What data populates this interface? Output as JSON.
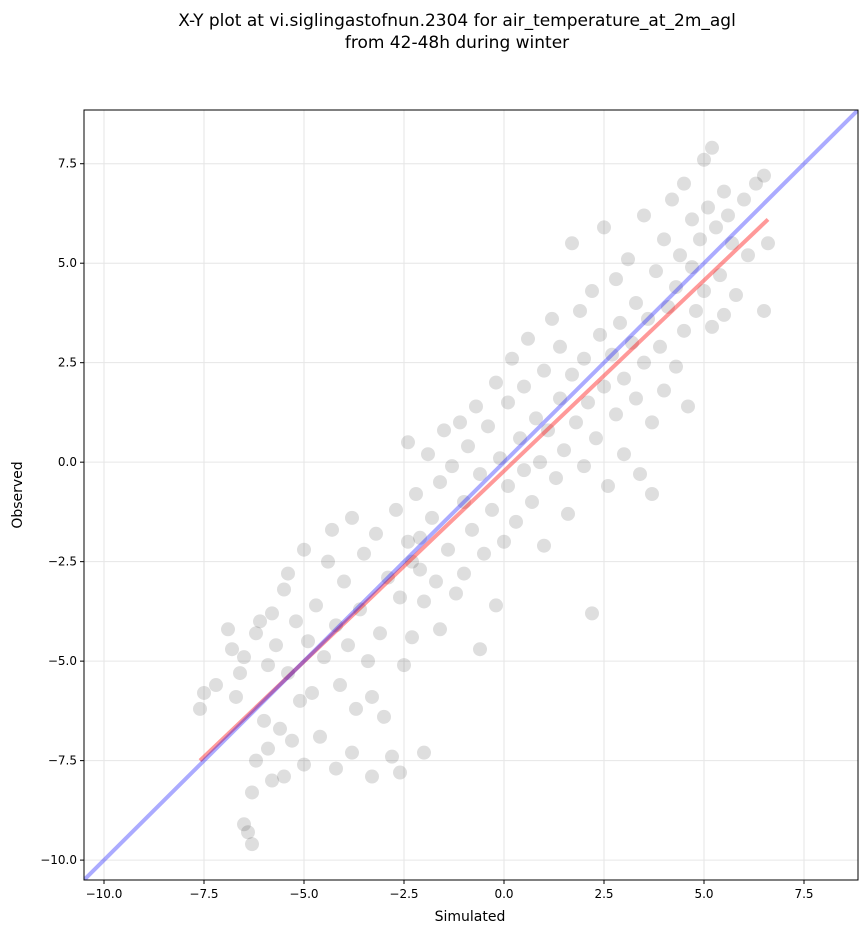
{
  "title_line1": "X-Y plot at vi.siglingastofnun.2304 for air_temperature_at_2m_agl",
  "title_line2": "from 42-48h during winter",
  "chart_data": {
    "type": "scatter",
    "title": "X-Y plot at vi.siglingastofnun.2304 for air_temperature_at_2m_agl from 42-48h during winter",
    "xlabel": "Simulated",
    "ylabel": "Observed",
    "xlim": [
      -10.5,
      8.85
    ],
    "ylim": [
      -10.5,
      8.85
    ],
    "xticks": [
      -10.0,
      -7.5,
      -5.0,
      -2.5,
      0.0,
      2.5,
      5.0,
      7.5
    ],
    "yticks": [
      -10.0,
      -7.5,
      -5.0,
      -2.5,
      0.0,
      2.5,
      5.0,
      7.5
    ],
    "xtick_labels": [
      "−10.0",
      "−7.5",
      "−5.0",
      "−2.5",
      "0.0",
      "2.5",
      "5.0",
      "7.5"
    ],
    "ytick_labels": [
      "−10.0",
      "−7.5",
      "−5.0",
      "−2.5",
      "0.0",
      "2.5",
      "5.0",
      "7.5"
    ],
    "grid": true,
    "point_color": "#000000",
    "point_alpha": 0.08,
    "series": [
      {
        "type": "scatter",
        "points": [
          [
            -7.6,
            -6.2
          ],
          [
            -7.5,
            -5.8
          ],
          [
            -7.2,
            -5.6
          ],
          [
            -6.9,
            -4.2
          ],
          [
            -6.8,
            -4.7
          ],
          [
            -6.7,
            -5.9
          ],
          [
            -6.6,
            -5.3
          ],
          [
            -6.5,
            -4.9
          ],
          [
            -6.5,
            -9.1
          ],
          [
            -6.4,
            -9.3
          ],
          [
            -6.3,
            -8.3
          ],
          [
            -6.3,
            -9.6
          ],
          [
            -6.2,
            -7.5
          ],
          [
            -6.2,
            -4.3
          ],
          [
            -6.1,
            -4.0
          ],
          [
            -6.0,
            -6.5
          ],
          [
            -5.9,
            -7.2
          ],
          [
            -5.9,
            -5.1
          ],
          [
            -5.8,
            -3.8
          ],
          [
            -5.8,
            -8.0
          ],
          [
            -5.7,
            -4.6
          ],
          [
            -5.6,
            -6.7
          ],
          [
            -5.5,
            -7.9
          ],
          [
            -5.5,
            -3.2
          ],
          [
            -5.4,
            -5.3
          ],
          [
            -5.4,
            -2.8
          ],
          [
            -5.3,
            -7.0
          ],
          [
            -5.2,
            -4.0
          ],
          [
            -5.1,
            -6.0
          ],
          [
            -5.0,
            -7.6
          ],
          [
            -5.0,
            -2.2
          ],
          [
            -4.9,
            -4.5
          ],
          [
            -4.8,
            -5.8
          ],
          [
            -4.7,
            -3.6
          ],
          [
            -4.6,
            -6.9
          ],
          [
            -4.5,
            -4.9
          ],
          [
            -4.4,
            -2.5
          ],
          [
            -4.3,
            -1.7
          ],
          [
            -4.2,
            -7.7
          ],
          [
            -4.2,
            -4.1
          ],
          [
            -4.1,
            -5.6
          ],
          [
            -4.0,
            -3.0
          ],
          [
            -3.9,
            -4.6
          ],
          [
            -3.8,
            -7.3
          ],
          [
            -3.8,
            -1.4
          ],
          [
            -3.7,
            -6.2
          ],
          [
            -3.6,
            -3.7
          ],
          [
            -3.5,
            -2.3
          ],
          [
            -3.4,
            -5.0
          ],
          [
            -3.3,
            -5.9
          ],
          [
            -3.3,
            -7.9
          ],
          [
            -3.2,
            -1.8
          ],
          [
            -3.1,
            -4.3
          ],
          [
            -3.0,
            -6.4
          ],
          [
            -2.9,
            -2.9
          ],
          [
            -2.8,
            -7.4
          ],
          [
            -2.7,
            -1.2
          ],
          [
            -2.6,
            -3.4
          ],
          [
            -2.6,
            -7.8
          ],
          [
            -2.5,
            -5.1
          ],
          [
            -2.4,
            -2.0
          ],
          [
            -2.4,
            0.5
          ],
          [
            -2.3,
            -4.4
          ],
          [
            -2.3,
            -2.5
          ],
          [
            -2.2,
            -0.8
          ],
          [
            -2.1,
            -1.9
          ],
          [
            -2.1,
            -2.7
          ],
          [
            -2.0,
            -3.5
          ],
          [
            -2.0,
            -7.3
          ],
          [
            -1.9,
            0.2
          ],
          [
            -1.8,
            -1.4
          ],
          [
            -1.7,
            -3.0
          ],
          [
            -1.6,
            -0.5
          ],
          [
            -1.6,
            -4.2
          ],
          [
            -1.5,
            0.8
          ],
          [
            -1.4,
            -2.2
          ],
          [
            -1.3,
            -0.1
          ],
          [
            -1.2,
            -3.3
          ],
          [
            -1.1,
            1.0
          ],
          [
            -1.0,
            -1.0
          ],
          [
            -1.0,
            -2.8
          ],
          [
            -0.9,
            0.4
          ],
          [
            -0.8,
            -1.7
          ],
          [
            -0.7,
            1.4
          ],
          [
            -0.6,
            -0.3
          ],
          [
            -0.6,
            -4.7
          ],
          [
            -0.5,
            -2.3
          ],
          [
            -0.4,
            0.9
          ],
          [
            -0.3,
            -1.2
          ],
          [
            -0.2,
            -3.6
          ],
          [
            -0.2,
            2.0
          ],
          [
            -0.1,
            0.1
          ],
          [
            0.0,
            -2.0
          ],
          [
            0.1,
            1.5
          ],
          [
            0.1,
            -0.6
          ],
          [
            0.2,
            2.6
          ],
          [
            0.3,
            -1.5
          ],
          [
            0.4,
            0.6
          ],
          [
            0.5,
            1.9
          ],
          [
            0.5,
            -0.2
          ],
          [
            0.6,
            3.1
          ],
          [
            0.7,
            -1.0
          ],
          [
            0.8,
            1.1
          ],
          [
            0.9,
            0.0
          ],
          [
            1.0,
            2.3
          ],
          [
            1.0,
            -2.1
          ],
          [
            1.1,
            0.8
          ],
          [
            1.2,
            3.6
          ],
          [
            1.3,
            -0.4
          ],
          [
            1.4,
            1.6
          ],
          [
            1.4,
            2.9
          ],
          [
            1.5,
            0.3
          ],
          [
            1.6,
            -1.3
          ],
          [
            1.7,
            2.2
          ],
          [
            1.7,
            5.5
          ],
          [
            1.8,
            1.0
          ],
          [
            1.9,
            3.8
          ],
          [
            2.0,
            -0.1
          ],
          [
            2.0,
            2.6
          ],
          [
            2.1,
            1.5
          ],
          [
            2.2,
            4.3
          ],
          [
            2.2,
            -3.8
          ],
          [
            2.3,
            0.6
          ],
          [
            2.4,
            3.2
          ],
          [
            2.5,
            1.9
          ],
          [
            2.5,
            5.9
          ],
          [
            2.6,
            -0.6
          ],
          [
            2.7,
            2.7
          ],
          [
            2.8,
            1.2
          ],
          [
            2.8,
            4.6
          ],
          [
            2.9,
            3.5
          ],
          [
            3.0,
            0.2
          ],
          [
            3.0,
            2.1
          ],
          [
            3.1,
            5.1
          ],
          [
            3.2,
            3.0
          ],
          [
            3.3,
            1.6
          ],
          [
            3.3,
            4.0
          ],
          [
            3.4,
            -0.3
          ],
          [
            3.5,
            2.5
          ],
          [
            3.5,
            6.2
          ],
          [
            3.6,
            3.6
          ],
          [
            3.7,
            1.0
          ],
          [
            3.7,
            -0.8
          ],
          [
            3.8,
            4.8
          ],
          [
            3.9,
            2.9
          ],
          [
            4.0,
            5.6
          ],
          [
            4.0,
            1.8
          ],
          [
            4.1,
            3.9
          ],
          [
            4.2,
            6.6
          ],
          [
            4.3,
            2.4
          ],
          [
            4.3,
            4.4
          ],
          [
            4.4,
            5.2
          ],
          [
            4.5,
            3.3
          ],
          [
            4.5,
            7.0
          ],
          [
            4.6,
            1.4
          ],
          [
            4.7,
            4.9
          ],
          [
            4.7,
            6.1
          ],
          [
            4.8,
            3.8
          ],
          [
            4.9,
            5.6
          ],
          [
            5.0,
            7.6
          ],
          [
            5.0,
            4.3
          ],
          [
            5.1,
            6.4
          ],
          [
            5.2,
            3.4
          ],
          [
            5.2,
            7.9
          ],
          [
            5.3,
            5.9
          ],
          [
            5.4,
            4.7
          ],
          [
            5.5,
            6.8
          ],
          [
            5.5,
            3.7
          ],
          [
            5.6,
            6.2
          ],
          [
            5.7,
            5.5
          ],
          [
            5.8,
            4.2
          ],
          [
            6.0,
            6.6
          ],
          [
            6.1,
            5.2
          ],
          [
            6.3,
            7.0
          ],
          [
            6.5,
            3.8
          ],
          [
            6.5,
            7.2
          ],
          [
            6.6,
            5.5
          ]
        ]
      },
      {
        "type": "line",
        "name": "",
        "color": "#ff0000",
        "alpha": 0.4,
        "points": [
          [
            -7.6,
            -7.5
          ],
          [
            6.6,
            6.1
          ]
        ]
      },
      {
        "type": "line",
        "name": "",
        "color": "#0000ff",
        "alpha": 0.33,
        "points": [
          [
            -10.5,
            -10.5
          ],
          [
            8.85,
            8.85
          ]
        ]
      }
    ]
  }
}
